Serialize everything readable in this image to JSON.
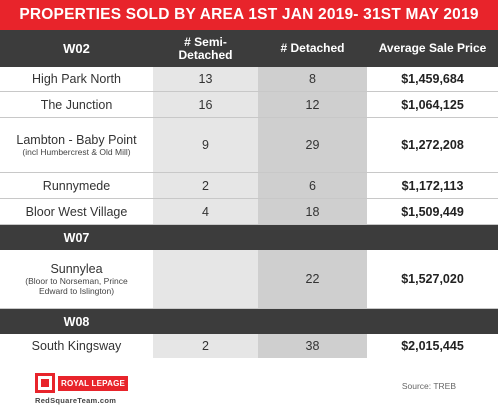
{
  "title": "PROPERTIES SOLD BY AREA 1ST JAN 2019- 31ST MAY 2019",
  "header": {
    "district": "W02",
    "semi": "# Semi-\nDetached",
    "semi_line1": "# Semi-",
    "semi_line2": "Detached",
    "detached": "# Detached",
    "avg": "Average Sale Price"
  },
  "w02_rows": [
    {
      "area": "High Park North",
      "sub": "",
      "semi": "13",
      "detached": "8",
      "price": "$1,459,684"
    },
    {
      "area": "The Junction",
      "sub": "",
      "semi": "16",
      "detached": "12",
      "price": "$1,064,125"
    },
    {
      "area": "Lambton - Baby Point",
      "sub": "(incl Humbercrest & Old Mill)",
      "semi": "9",
      "detached": "29",
      "price": "$1,272,208"
    },
    {
      "area": "Runnymede",
      "sub": "",
      "semi": "2",
      "detached": "6",
      "price": "$1,172,113"
    },
    {
      "area": "Bloor West Village",
      "sub": "",
      "semi": "4",
      "detached": "18",
      "price": "$1,509,449"
    }
  ],
  "w07": {
    "district": "W07",
    "rows": [
      {
        "area": "Sunnylea",
        "sub": "(Bloor to Norseman, Prince Edward to Islington)",
        "semi": "",
        "detached": "22",
        "price": "$1,527,020"
      }
    ]
  },
  "w08": {
    "district": "W08",
    "rows": [
      {
        "area": "South Kingsway",
        "sub": "",
        "semi": "2",
        "detached": "38",
        "price": "$2,015,445"
      }
    ]
  },
  "footer": {
    "logo_text": "ROYAL LEPAGE",
    "url": "RedSquareTeam.com",
    "source": "Source: TREB"
  },
  "colors": {
    "accent": "#e8242b",
    "dark": "#3c3c3c",
    "semi_col": "#e6e6e6",
    "det_col": "#cfcfcf"
  }
}
